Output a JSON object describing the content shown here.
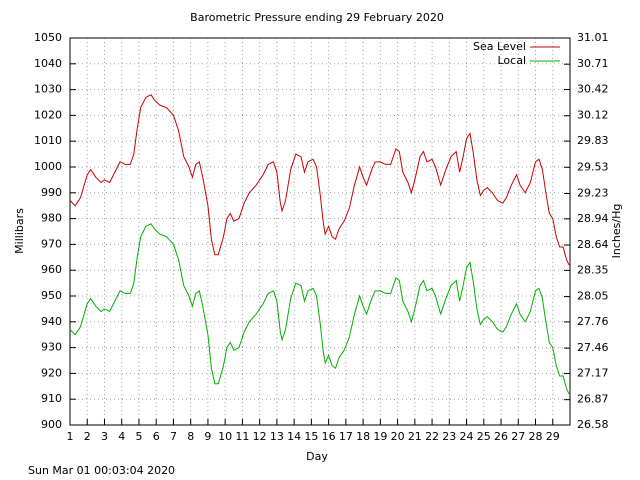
{
  "chart_data": {
    "type": "line",
    "title": "Barometric Pressure ending 29 February 2020",
    "x_label": "Day",
    "y_label": "Millibars",
    "y2_label": "Inches/Hg",
    "footer": "Sun Mar 01 00:03:04 2020",
    "xlim": [
      1,
      30
    ],
    "xticks": [
      1,
      2,
      3,
      4,
      5,
      6,
      7,
      8,
      9,
      10,
      11,
      12,
      13,
      14,
      15,
      16,
      17,
      18,
      19,
      20,
      21,
      22,
      23,
      24,
      25,
      26,
      27,
      28,
      29
    ],
    "ylim": [
      900,
      1050
    ],
    "yticks": [
      900,
      910,
      920,
      930,
      940,
      950,
      960,
      970,
      980,
      990,
      1000,
      1010,
      1020,
      1030,
      1040,
      1050
    ],
    "y2lim": [
      26.58,
      31.01
    ],
    "y2ticks": [
      26.58,
      26.87,
      27.17,
      27.46,
      27.76,
      28.05,
      28.35,
      28.64,
      28.94,
      29.23,
      29.53,
      29.83,
      30.12,
      30.42,
      30.71,
      31.01
    ],
    "grid": true,
    "legend": "top-right",
    "x": [
      1,
      1.3,
      1.6,
      2,
      2.2,
      2.5,
      2.8,
      3,
      3.3,
      3.6,
      3.9,
      4.2,
      4.5,
      4.7,
      4.9,
      5.1,
      5.4,
      5.7,
      5.9,
      6.2,
      6.6,
      7,
      7.3,
      7.6,
      7.9,
      8.1,
      8.3,
      8.5,
      8.7,
      9,
      9.2,
      9.4,
      9.6,
      9.9,
      10.1,
      10.3,
      10.5,
      10.8,
      11.1,
      11.4,
      11.8,
      12.2,
      12.5,
      12.8,
      13,
      13.2,
      13.3,
      13.5,
      13.8,
      14.1,
      14.4,
      14.6,
      14.8,
      15.1,
      15.3,
      15.5,
      15.7,
      15.8,
      16,
      16.2,
      16.4,
      16.6,
      16.9,
      17.2,
      17.5,
      17.8,
      18,
      18.2,
      18.5,
      18.7,
      19,
      19.3,
      19.6,
      19.9,
      20.1,
      20.3,
      20.6,
      20.8,
      21,
      21.3,
      21.5,
      21.7,
      22,
      22.2,
      22.5,
      22.8,
      23.1,
      23.4,
      23.6,
      23.8,
      24,
      24.2,
      24.4,
      24.6,
      24.8,
      25,
      25.2,
      25.5,
      25.8,
      26.1,
      26.3,
      26.6,
      26.9,
      27.1,
      27.4,
      27.7,
      28,
      28.2,
      28.4,
      28.6,
      28.8,
      29,
      29.2,
      29.4,
      29.6,
      29.8,
      29.95
    ],
    "series": [
      {
        "name": "Sea Level",
        "color": "#cc0000",
        "values": [
          987,
          985,
          988,
          997,
          999,
          996,
          994,
          995,
          994,
          998,
          1002,
          1001,
          1001,
          1005,
          1015,
          1023,
          1027,
          1028,
          1026,
          1024,
          1023,
          1020,
          1014,
          1004,
          1000,
          996,
          1001,
          1002,
          996,
          985,
          972,
          966,
          966,
          973,
          980,
          982,
          979,
          980,
          986,
          990,
          993,
          997,
          1001,
          1002,
          998,
          986,
          983,
          987,
          999,
          1005,
          1004,
          998,
          1002,
          1003,
          1000,
          990,
          978,
          974,
          977,
          973,
          972,
          976,
          979,
          984,
          993,
          1000,
          996,
          993,
          999,
          1002,
          1002,
          1001,
          1001,
          1007,
          1006,
          998,
          994,
          990,
          995,
          1004,
          1006,
          1002,
          1003,
          1000,
          993,
          999,
          1004,
          1006,
          998,
          1004,
          1011,
          1013,
          1005,
          995,
          989,
          991,
          992,
          990,
          987,
          986,
          988,
          993,
          997,
          993,
          990,
          994,
          1002,
          1003,
          999,
          990,
          982,
          980,
          973,
          969,
          969,
          964,
          962
        ]
      },
      {
        "name": "Local",
        "color": "#00b000",
        "values": [
          937,
          935,
          938,
          947,
          949,
          946,
          944,
          945,
          944,
          948,
          952,
          951,
          951,
          955,
          965,
          973,
          977,
          978,
          976,
          974,
          973,
          970,
          964,
          954,
          950,
          946,
          951,
          952,
          946,
          935,
          922,
          916,
          916,
          923,
          930,
          932,
          929,
          930,
          936,
          940,
          943,
          947,
          951,
          952,
          948,
          936,
          933,
          937,
          949,
          955,
          954,
          948,
          952,
          953,
          950,
          940,
          928,
          924,
          927,
          923,
          922,
          926,
          929,
          934,
          943,
          950,
          946,
          943,
          949,
          952,
          952,
          951,
          951,
          957,
          956,
          948,
          944,
          940,
          945,
          954,
          956,
          952,
          953,
          950,
          943,
          949,
          954,
          956,
          948,
          954,
          961,
          963,
          955,
          945,
          939,
          941,
          942,
          940,
          937,
          936,
          938,
          943,
          947,
          943,
          940,
          944,
          952,
          953,
          949,
          940,
          932,
          930,
          923,
          919,
          919,
          914,
          912
        ]
      }
    ]
  }
}
